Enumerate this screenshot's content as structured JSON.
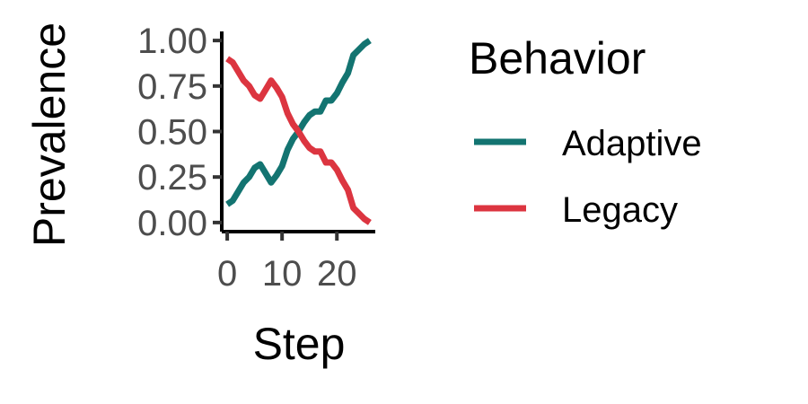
{
  "chart_data": {
    "type": "line",
    "xlabel": "Step",
    "ylabel": "Prevalence",
    "xlim": [
      -1,
      27
    ],
    "ylim": [
      -0.05,
      1.05
    ],
    "xticks": [
      0,
      10,
      20
    ],
    "yticks": [
      0.0,
      0.25,
      0.5,
      0.75,
      1.0
    ],
    "ytick_labels": [
      "0.00",
      "0.25",
      "0.50",
      "0.75",
      "1.00"
    ],
    "grid": false,
    "legend_position": "right",
    "legend_title": "Behavior",
    "series": [
      {
        "name": "Adaptive",
        "color": "#137471",
        "x": [
          0,
          1,
          2,
          3,
          4,
          5,
          6,
          7,
          8,
          9,
          10,
          11,
          12,
          13,
          14,
          15,
          16,
          17,
          18,
          19,
          20,
          21,
          22,
          23,
          24,
          25,
          26
        ],
        "values": [
          0.1,
          0.12,
          0.17,
          0.22,
          0.25,
          0.3,
          0.32,
          0.27,
          0.22,
          0.26,
          0.31,
          0.4,
          0.46,
          0.5,
          0.55,
          0.59,
          0.61,
          0.61,
          0.67,
          0.67,
          0.71,
          0.77,
          0.82,
          0.92,
          0.95,
          0.98,
          1.0
        ]
      },
      {
        "name": "Legacy",
        "color": "#dc3540",
        "x": [
          0,
          1,
          2,
          3,
          4,
          5,
          6,
          7,
          8,
          9,
          10,
          11,
          12,
          13,
          14,
          15,
          16,
          17,
          18,
          19,
          20,
          21,
          22,
          23,
          24,
          25,
          26
        ],
        "values": [
          0.9,
          0.88,
          0.83,
          0.78,
          0.75,
          0.7,
          0.68,
          0.73,
          0.78,
          0.74,
          0.69,
          0.6,
          0.54,
          0.5,
          0.45,
          0.41,
          0.39,
          0.39,
          0.33,
          0.33,
          0.29,
          0.23,
          0.18,
          0.08,
          0.05,
          0.02,
          0.0
        ]
      }
    ]
  }
}
